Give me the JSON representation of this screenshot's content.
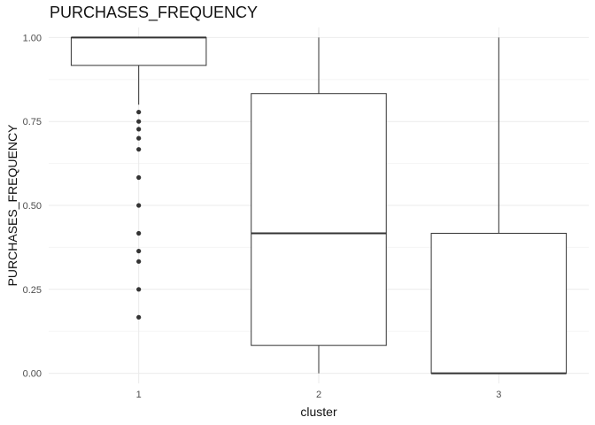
{
  "chart_data": {
    "type": "boxplot",
    "title": "PURCHASES_FREQUENCY",
    "xlabel": "cluster",
    "ylabel": "PURCHASES_FREQUENCY",
    "ylim": [
      -0.03,
      1.03
    ],
    "y_ticks": [
      0.0,
      0.25,
      0.5,
      0.75,
      1.0
    ],
    "y_tick_labels": [
      "0.00",
      "0.25",
      "0.50",
      "0.75",
      "1.00"
    ],
    "grid": true,
    "categories": [
      "1",
      "2",
      "3"
    ],
    "boxes": [
      {
        "category": "1",
        "lower_whisker": 0.8,
        "q1": 0.917,
        "median": 1.0,
        "q3": 1.0,
        "upper_whisker": 1.0,
        "outliers": [
          0.778,
          0.75,
          0.727,
          0.7,
          0.667,
          0.583,
          0.5,
          0.417,
          0.364,
          0.333,
          0.25,
          0.167
        ]
      },
      {
        "category": "2",
        "lower_whisker": 0.0,
        "q1": 0.083,
        "median": 0.417,
        "q3": 0.833,
        "upper_whisker": 1.0,
        "outliers": []
      },
      {
        "category": "3",
        "lower_whisker": 0.0,
        "q1": 0.0,
        "median": 0.0,
        "q3": 0.417,
        "upper_whisker": 1.0,
        "outliers": []
      }
    ],
    "colors": {
      "box_stroke": "#333333",
      "box_fill": "#ffffff",
      "grid_major": "#ebebeb",
      "grid_minor": "#f5f5f5"
    }
  }
}
